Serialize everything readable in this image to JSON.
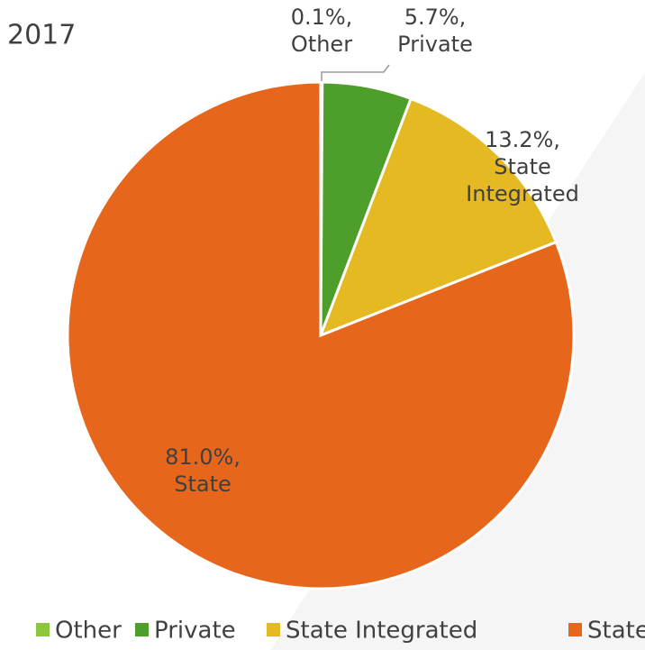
{
  "chart_data": {
    "type": "pie",
    "title": "2017",
    "categories": [
      "Other",
      "Private",
      "State Integrated",
      "State"
    ],
    "values": [
      0.1,
      5.7,
      13.2,
      81.0
    ],
    "value_labels": [
      "0.1%,",
      "5.7%,",
      "13.2%,",
      "81.0%,"
    ],
    "colors": [
      "#8cc63e",
      "#4d9e2b",
      "#e5b921",
      "#e6661b"
    ],
    "legend": "bottom"
  }
}
